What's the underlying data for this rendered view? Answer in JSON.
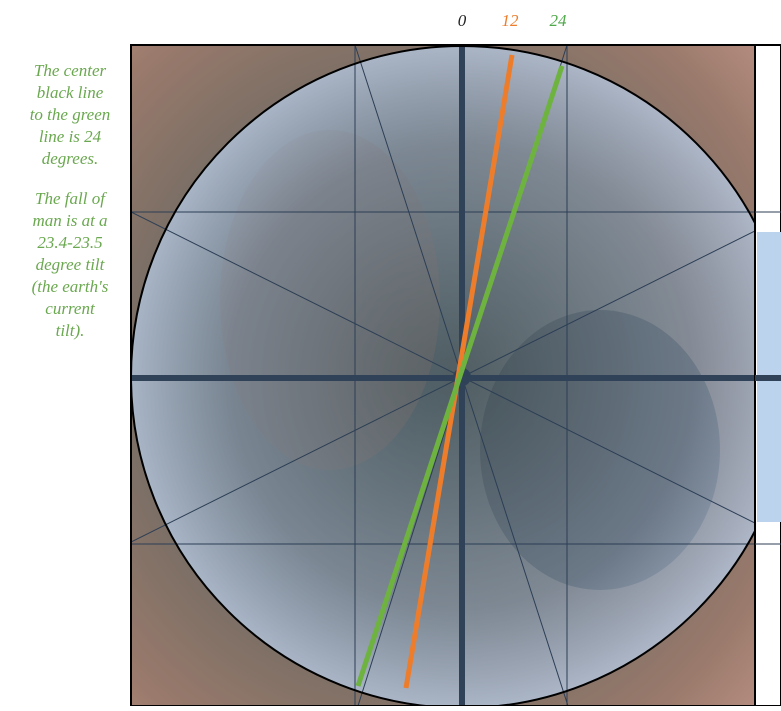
{
  "labels": {
    "zero": "0",
    "twelve": "12",
    "twentyfour": "24"
  },
  "notes": [
    [
      "The center",
      "black line",
      "to the green",
      "line is 24",
      "degrees."
    ],
    [
      "The fall of",
      "man is at a",
      "23.4-23.5",
      "degree tilt",
      "(the earth's",
      "current",
      "tilt)."
    ]
  ]
}
